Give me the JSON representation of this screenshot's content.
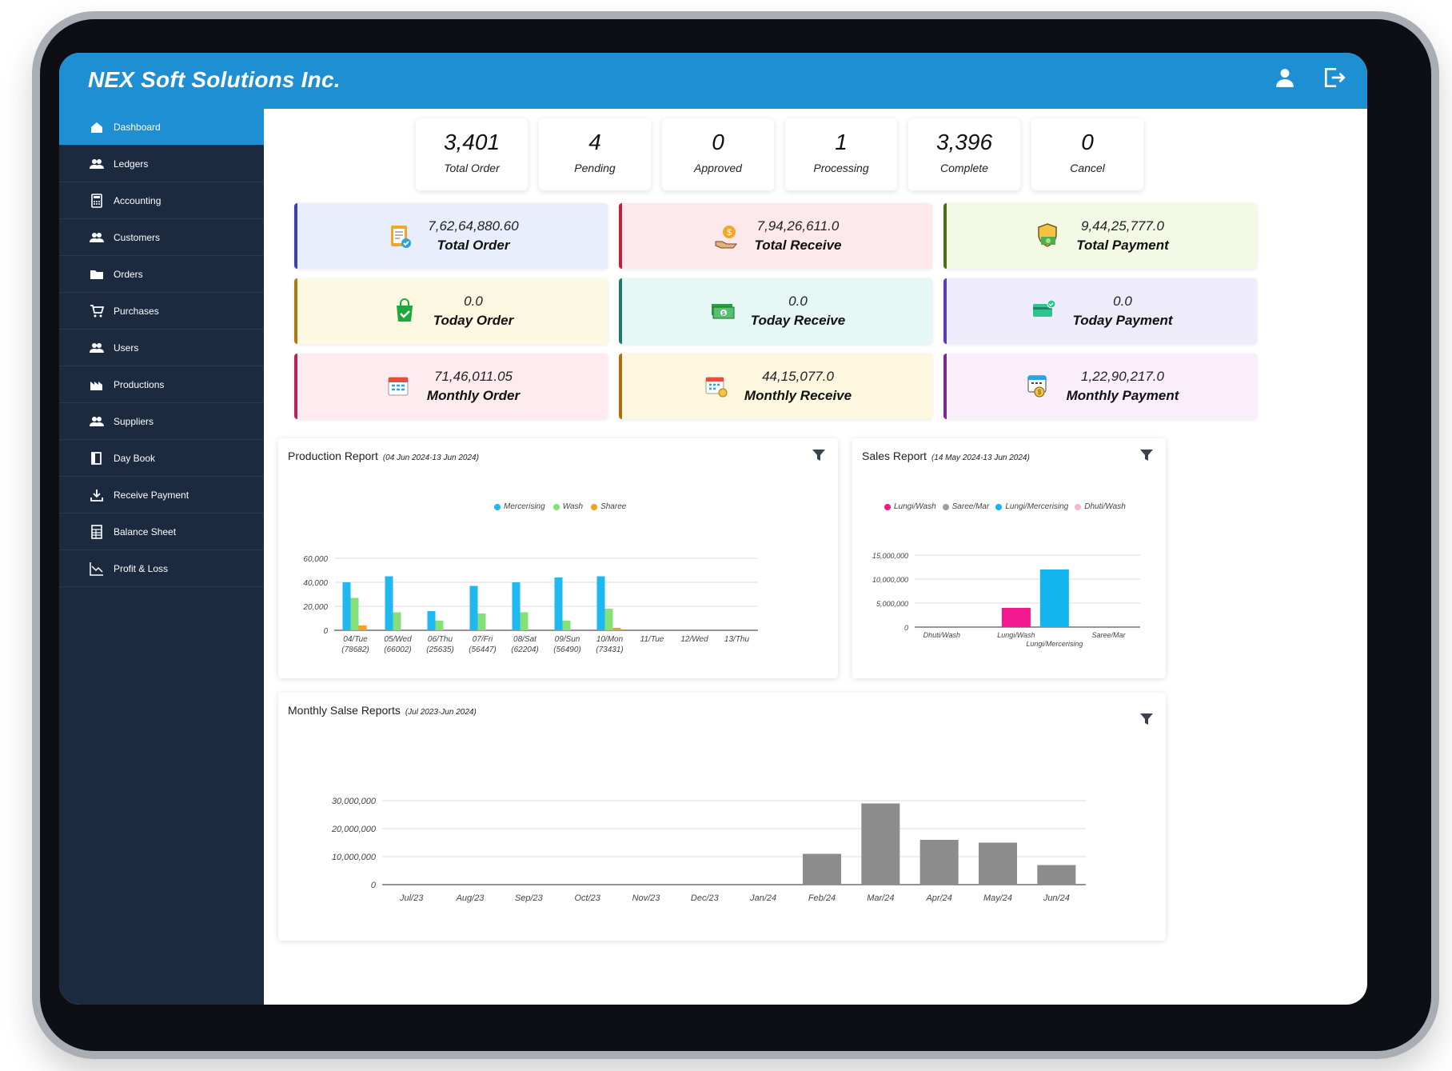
{
  "app": {
    "brand": "NEX Soft Solutions Inc."
  },
  "sidebar": {
    "items": [
      {
        "label": "Dashboard",
        "icon": "home-icon",
        "active": true
      },
      {
        "label": "Ledgers",
        "icon": "users-icon"
      },
      {
        "label": "Accounting",
        "icon": "calculator-icon"
      },
      {
        "label": "Customers",
        "icon": "users-icon"
      },
      {
        "label": "Orders",
        "icon": "folder-icon"
      },
      {
        "label": "Purchases",
        "icon": "cart-icon"
      },
      {
        "label": "Users",
        "icon": "users-icon"
      },
      {
        "label": "Productions",
        "icon": "factory-icon"
      },
      {
        "label": "Suppliers",
        "icon": "users-icon"
      },
      {
        "label": "Day Book",
        "icon": "book-icon"
      },
      {
        "label": "Receive Payment",
        "icon": "download-icon"
      },
      {
        "label": "Balance Sheet",
        "icon": "sheet-icon"
      },
      {
        "label": "Profit & Loss",
        "icon": "trend-icon"
      }
    ]
  },
  "stats": [
    {
      "value": "3,401",
      "label": "Total Order"
    },
    {
      "value": "4",
      "label": "Pending"
    },
    {
      "value": "0",
      "label": "Approved"
    },
    {
      "value": "1",
      "label": "Processing"
    },
    {
      "value": "3,396",
      "label": "Complete"
    },
    {
      "value": "0",
      "label": "Cancel"
    }
  ],
  "cards": [
    {
      "amount": "7,62,64,880.60",
      "label": "Total Order",
      "icon": "clipboard-check-icon",
      "bg": "#e9eefc",
      "accent": "#3b3fb0"
    },
    {
      "amount": "7,94,26,611.0",
      "label": "Total Receive",
      "icon": "money-hand-icon",
      "bg": "#fde9ec",
      "accent": "#c41e3a"
    },
    {
      "amount": "9,44,25,777.0",
      "label": "Total Payment",
      "icon": "shield-money-icon",
      "bg": "#f3f9e4",
      "accent": "#4f6b1c"
    },
    {
      "amount": "0.0",
      "label": "Today Order",
      "icon": "bag-check-icon",
      "bg": "#fdf8e1",
      "accent": "#b07a10"
    },
    {
      "amount": "0.0",
      "label": "Today Receive",
      "icon": "cash-stack-icon",
      "bg": "#e6f8f5",
      "accent": "#1d7a6a"
    },
    {
      "amount": "0.0",
      "label": "Today Payment",
      "icon": "card-check-icon",
      "bg": "#eeebfb",
      "accent": "#5a3db5"
    },
    {
      "amount": "71,46,011.05",
      "label": "Monthly Order",
      "icon": "calendar-icon",
      "bg": "#fdebf0",
      "accent": "#b8245a"
    },
    {
      "amount": "44,15,077.0",
      "label": "Monthly Receive",
      "icon": "calendar-coins-icon",
      "bg": "#fdf7df",
      "accent": "#b36b0f"
    },
    {
      "amount": "1,22,90,217.0",
      "label": "Monthly Payment",
      "icon": "calendar-money-icon",
      "bg": "#faeefb",
      "accent": "#7a2a8f"
    }
  ],
  "production": {
    "title": "Production Report",
    "range": "(04 Jun 2024-13 Jun 2024)"
  },
  "sales": {
    "title": "Sales Report",
    "range": "(14 May 2024-13 Jun 2024)"
  },
  "monthly": {
    "title": "Monthly Salse Reports",
    "range": "(Jul 2023-Jun 2024)"
  },
  "chart_data": [
    {
      "type": "bar",
      "title": "Production Report",
      "categories": [
        "04/Tue",
        "05/Wed",
        "06/Thu",
        "07/Fri",
        "08/Sat",
        "09/Sun",
        "10/Mon",
        "11/Tue",
        "12/Wed",
        "13/Thu"
      ],
      "category_sublabels": [
        "(78682)",
        "(66002)",
        "(25635)",
        "(56447)",
        "(62204)",
        "(56490)",
        "(73431)",
        "",
        "",
        ""
      ],
      "series": [
        {
          "name": "Mercerising",
          "color": "#1fb8ef",
          "values": [
            40000,
            45000,
            16000,
            37000,
            40000,
            44000,
            45000,
            0,
            0,
            0
          ]
        },
        {
          "name": "Wash",
          "color": "#86e07a",
          "values": [
            27000,
            15000,
            8000,
            14000,
            15000,
            8000,
            18000,
            0,
            0,
            0
          ]
        },
        {
          "name": "Sharee",
          "color": "#f5a11c",
          "values": [
            4000,
            0,
            0,
            0,
            0,
            0,
            2000,
            0,
            0,
            0
          ]
        }
      ],
      "yticks": [
        "0",
        "20,000",
        "40,000",
        "60,000"
      ],
      "ylim": [
        0,
        60000
      ]
    },
    {
      "type": "bar",
      "title": "Sales Report",
      "categories": [
        "Dhuti/Wash",
        "Lungi/Wash",
        "Lungi/Mercerising",
        "Saree/Mar"
      ],
      "values": [
        0,
        4000000,
        12000000,
        0
      ],
      "series_legend": [
        {
          "name": "Lungi/Wash",
          "color": "#f4188f"
        },
        {
          "name": "Saree/Mar",
          "color": "#9aa0a6"
        },
        {
          "name": "Lungi/Mercerising",
          "color": "#12b5f0"
        },
        {
          "name": "Dhuti/Wash",
          "color": "#f7b6cc"
        }
      ],
      "bar_colors": [
        "#f7b6cc",
        "#f4188f",
        "#12b5f0",
        "#9aa0a6"
      ],
      "yticks": [
        "0",
        "5,000,000",
        "10,000,000",
        "15,000,000"
      ],
      "ylim": [
        0,
        15000000
      ]
    },
    {
      "type": "bar",
      "title": "Monthly Salse Reports",
      "categories": [
        "Jul/23",
        "Aug/23",
        "Sep/23",
        "Oct/23",
        "Nov/23",
        "Dec/23",
        "Jan/24",
        "Feb/24",
        "Mar/24",
        "Apr/24",
        "May/24",
        "Jun/24"
      ],
      "values": [
        0,
        0,
        0,
        0,
        0,
        0,
        0,
        11000000,
        29000000,
        16000000,
        15000000,
        7000000
      ],
      "color": "#8c8c8c",
      "yticks": [
        "0",
        "10,000,000",
        "20,000,000",
        "30,000,000"
      ],
      "ylim": [
        0,
        30000000
      ]
    }
  ]
}
